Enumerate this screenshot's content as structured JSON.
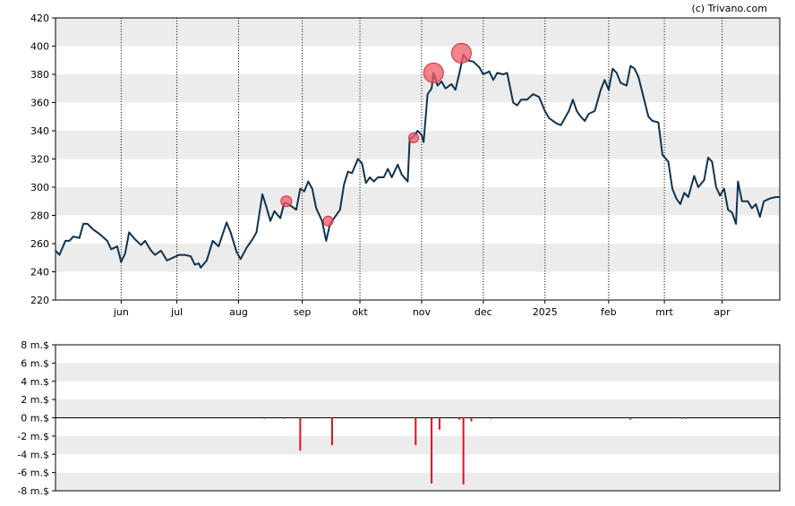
{
  "credit": "(c) Trivano.com",
  "colors": {
    "band": "#ececec",
    "price_line": "#0f3350",
    "bubble_fill": "#f05a64",
    "bubble_stroke": "#d42a36",
    "volume_bar": "#e0101e"
  },
  "chart_data": [
    {
      "type": "line",
      "title": "",
      "grid": "vertical dotted lines at month starts, alternating horizontal bands",
      "ylim": [
        220,
        420
      ],
      "y_ticks": [
        "420",
        "400",
        "380",
        "360",
        "340",
        "320",
        "300",
        "280",
        "260",
        "240",
        "220"
      ],
      "x_ticks": [
        {
          "label": "jun",
          "date": "2024-06-03"
        },
        {
          "label": "jul",
          "date": "2024-07-01"
        },
        {
          "label": "aug",
          "date": "2024-08-01"
        },
        {
          "label": "sep",
          "date": "2024-09-02"
        },
        {
          "label": "okt",
          "date": "2024-10-01"
        },
        {
          "label": "nov",
          "date": "2024-11-01"
        },
        {
          "label": "dec",
          "date": "2024-12-02"
        },
        {
          "label": "2025",
          "date": "2025-01-02"
        },
        {
          "label": "feb",
          "date": "2025-02-03"
        },
        {
          "label": "mrt",
          "date": "2025-03-03"
        },
        {
          "label": "apr",
          "date": "2025-04-01"
        }
      ],
      "xlim": [
        "2024-05-01",
        "2025-04-30"
      ],
      "series": [
        {
          "values": [
            [
              "2024-05-01",
              255
            ],
            [
              "2024-05-03",
              252
            ],
            [
              "2024-05-06",
              262
            ],
            [
              "2024-05-08",
              262
            ],
            [
              "2024-05-10",
              265
            ],
            [
              "2024-05-13",
              264
            ],
            [
              "2024-05-15",
              274
            ],
            [
              "2024-05-17",
              274
            ],
            [
              "2024-05-20",
              270
            ],
            [
              "2024-05-23",
              267
            ],
            [
              "2024-05-27",
              262
            ],
            [
              "2024-05-29",
              256
            ],
            [
              "2024-06-01",
              258
            ],
            [
              "2024-06-03",
              247
            ],
            [
              "2024-06-05",
              253
            ],
            [
              "2024-06-07",
              268
            ],
            [
              "2024-06-10",
              263
            ],
            [
              "2024-06-13",
              259
            ],
            [
              "2024-06-15",
              262
            ],
            [
              "2024-06-18",
              255
            ],
            [
              "2024-06-20",
              252
            ],
            [
              "2024-06-23",
              255
            ],
            [
              "2024-06-26",
              248
            ],
            [
              "2024-06-29",
              250
            ],
            [
              "2024-07-02",
              252
            ],
            [
              "2024-07-05",
              252
            ],
            [
              "2024-07-08",
              251
            ],
            [
              "2024-07-10",
              245
            ],
            [
              "2024-07-12",
              246
            ],
            [
              "2024-07-13",
              243
            ],
            [
              "2024-07-16",
              248
            ],
            [
              "2024-07-19",
              262
            ],
            [
              "2024-07-22",
              258
            ],
            [
              "2024-07-26",
              275
            ],
            [
              "2024-07-28",
              268
            ],
            [
              "2024-07-31",
              254
            ],
            [
              "2024-08-02",
              249
            ],
            [
              "2024-08-05",
              257
            ],
            [
              "2024-08-08",
              263
            ],
            [
              "2024-08-10",
              268
            ],
            [
              "2024-08-13",
              295
            ],
            [
              "2024-08-15",
              286
            ],
            [
              "2024-08-17",
              276
            ],
            [
              "2024-08-19",
              283
            ],
            [
              "2024-08-22",
              278
            ],
            [
              "2024-08-24",
              289
            ],
            [
              "2024-08-26",
              288
            ],
            [
              "2024-08-28",
              286
            ],
            [
              "2024-08-30",
              284
            ],
            [
              "2024-09-01",
              299
            ],
            [
              "2024-09-03",
              297
            ],
            [
              "2024-09-05",
              304
            ],
            [
              "2024-09-07",
              299
            ],
            [
              "2024-09-09",
              285
            ],
            [
              "2024-09-12",
              276
            ],
            [
              "2024-09-14",
              262
            ],
            [
              "2024-09-16",
              274
            ],
            [
              "2024-09-18",
              278
            ],
            [
              "2024-09-21",
              284
            ],
            [
              "2024-09-23",
              302
            ],
            [
              "2024-09-25",
              311
            ],
            [
              "2024-09-27",
              310
            ],
            [
              "2024-09-30",
              320
            ],
            [
              "2024-10-02",
              317
            ],
            [
              "2024-10-04",
              303
            ],
            [
              "2024-10-06",
              307
            ],
            [
              "2024-10-08",
              304
            ],
            [
              "2024-10-10",
              307
            ],
            [
              "2024-10-13",
              307
            ],
            [
              "2024-10-15",
              313
            ],
            [
              "2024-10-17",
              307
            ],
            [
              "2024-10-20",
              316
            ],
            [
              "2024-10-22",
              309
            ],
            [
              "2024-10-25",
              304
            ],
            [
              "2024-10-26",
              334
            ],
            [
              "2024-10-28",
              336
            ],
            [
              "2024-10-30",
              340
            ],
            [
              "2024-11-01",
              337
            ],
            [
              "2024-11-02",
              332
            ],
            [
              "2024-11-04",
              366
            ],
            [
              "2024-11-06",
              370
            ],
            [
              "2024-11-07",
              381
            ],
            [
              "2024-11-09",
              372
            ],
            [
              "2024-11-11",
              375
            ],
            [
              "2024-11-13",
              370
            ],
            [
              "2024-11-16",
              373
            ],
            [
              "2024-11-18",
              369
            ],
            [
              "2024-11-20",
              381
            ],
            [
              "2024-11-22",
              394
            ],
            [
              "2024-11-24",
              390
            ],
            [
              "2024-11-27",
              389
            ],
            [
              "2024-11-30",
              385
            ],
            [
              "2024-12-02",
              380
            ],
            [
              "2024-12-05",
              382
            ],
            [
              "2024-12-07",
              376
            ],
            [
              "2024-12-09",
              381
            ],
            [
              "2024-12-12",
              380
            ],
            [
              "2024-12-14",
              381
            ],
            [
              "2024-12-17",
              360
            ],
            [
              "2024-12-19",
              358
            ],
            [
              "2024-12-21",
              362
            ],
            [
              "2024-12-24",
              362
            ],
            [
              "2024-12-27",
              366
            ],
            [
              "2024-12-30",
              364
            ],
            [
              "2025-01-02",
              354
            ],
            [
              "2025-01-04",
              349
            ],
            [
              "2025-01-06",
              347
            ],
            [
              "2025-01-08",
              345
            ],
            [
              "2025-01-10",
              344
            ],
            [
              "2025-01-14",
              354
            ],
            [
              "2025-01-16",
              362
            ],
            [
              "2025-01-18",
              354
            ],
            [
              "2025-01-20",
              350
            ],
            [
              "2025-01-22",
              347
            ],
            [
              "2025-01-24",
              352
            ],
            [
              "2025-01-27",
              354
            ],
            [
              "2025-01-30",
              369
            ],
            [
              "2025-02-01",
              376
            ],
            [
              "2025-02-03",
              369
            ],
            [
              "2025-02-05",
              384
            ],
            [
              "2025-02-07",
              381
            ],
            [
              "2025-02-09",
              374
            ],
            [
              "2025-02-12",
              372
            ],
            [
              "2025-02-14",
              386
            ],
            [
              "2025-02-16",
              384
            ],
            [
              "2025-02-18",
              378
            ],
            [
              "2025-02-21",
              361
            ],
            [
              "2025-02-23",
              350
            ],
            [
              "2025-02-25",
              347
            ],
            [
              "2025-02-28",
              346
            ],
            [
              "2025-03-02",
              323
            ],
            [
              "2025-03-05",
              318
            ],
            [
              "2025-03-07",
              299
            ],
            [
              "2025-03-09",
              292
            ],
            [
              "2025-03-11",
              288
            ],
            [
              "2025-03-13",
              296
            ],
            [
              "2025-03-15",
              293
            ],
            [
              "2025-03-18",
              308
            ],
            [
              "2025-03-20",
              300
            ],
            [
              "2025-03-23",
              305
            ],
            [
              "2025-03-25",
              321
            ],
            [
              "2025-03-27",
              318
            ],
            [
              "2025-03-29",
              300
            ],
            [
              "2025-03-31",
              294
            ],
            [
              "2025-04-02",
              299
            ],
            [
              "2025-04-04",
              284
            ],
            [
              "2025-04-06",
              282
            ],
            [
              "2025-04-08",
              274
            ],
            [
              "2025-04-09",
              304
            ],
            [
              "2025-04-11",
              290
            ],
            [
              "2025-04-14",
              290
            ],
            [
              "2025-04-16",
              285
            ],
            [
              "2025-04-18",
              288
            ],
            [
              "2025-04-20",
              279
            ],
            [
              "2025-04-22",
              290
            ],
            [
              "2025-04-25",
              292
            ],
            [
              "2025-04-28",
              293
            ],
            [
              "2025-04-30",
              293
            ]
          ]
        }
      ],
      "events": [
        {
          "date": "2024-08-25",
          "value": 290,
          "size": 1.0
        },
        {
          "date": "2024-09-15",
          "value": 276,
          "size": 0.9
        },
        {
          "date": "2024-10-28",
          "value": 335,
          "size": 0.9
        },
        {
          "date": "2024-11-07",
          "value": 381,
          "size": 2.0
        },
        {
          "date": "2024-11-21",
          "value": 395,
          "size": 2.0
        }
      ]
    },
    {
      "type": "bar",
      "title": "",
      "ylim": [
        -8,
        8
      ],
      "y_ticks": [
        "8 m.$",
        "6 m.$",
        "4 m.$",
        "2 m.$",
        "0 m.$",
        "-2 m.$",
        "-4 m.$",
        "-6 m.$",
        "-8 m.$"
      ],
      "y_tick_values": [
        8,
        6,
        4,
        2,
        0,
        -2,
        -4,
        -6,
        -8
      ],
      "series": [
        {
          "values": [
            [
              "2024-08-14",
              -0.1
            ],
            [
              "2024-08-24",
              -0.1
            ],
            [
              "2024-09-01",
              -3.6
            ],
            [
              "2024-09-17",
              -3.0
            ],
            [
              "2024-10-29",
              -3.0
            ],
            [
              "2024-11-06",
              -7.2
            ],
            [
              "2024-11-10",
              -1.3
            ],
            [
              "2024-11-20",
              -0.2
            ],
            [
              "2024-11-22",
              -7.3
            ],
            [
              "2024-11-26",
              -0.4
            ],
            [
              "2024-12-06",
              -0.1
            ],
            [
              "2025-02-14",
              -0.2
            ],
            [
              "2025-03-12",
              -0.1
            ],
            [
              "2025-03-14",
              -0.1
            ]
          ]
        }
      ]
    }
  ]
}
